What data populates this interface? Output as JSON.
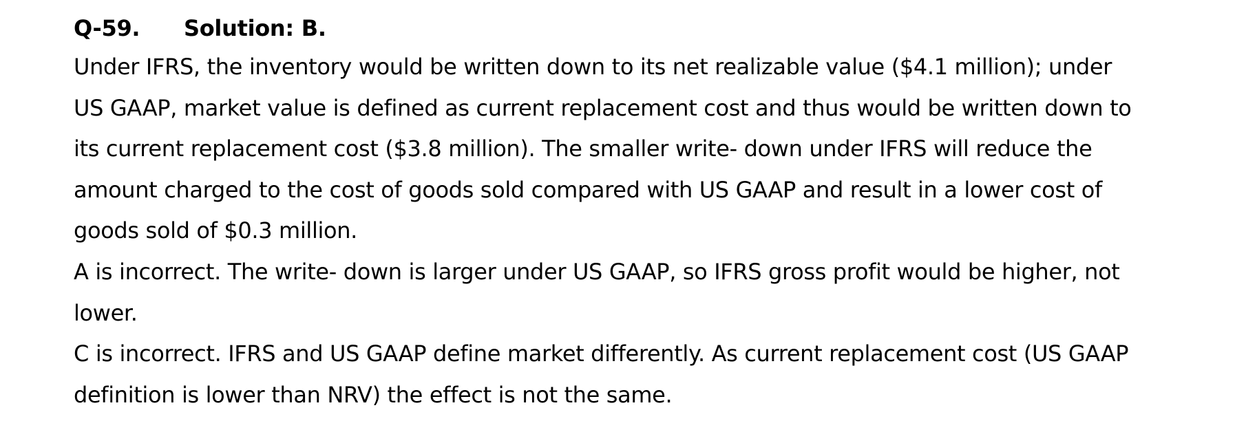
{
  "question": {
    "number": "Q-59.",
    "solution": "Solution: B."
  },
  "explanation": {
    "lines": [
      "Under IFRS, the inventory would be written down to its net realizable value ($4.1 million); under",
      "US GAAP, market value is defined as current replacement cost and thus would be written down to",
      "its current replacement cost ($3.8 million). The smaller write- down under IFRS will reduce the",
      "amount charged to the cost of goods sold compared with US GAAP and result in a lower cost of",
      "goods sold of $0.3 million."
    ]
  },
  "option_a": {
    "lines": [
      "A is incorrect. The write- down is larger under US GAAP, so IFRS gross profit would be higher, not",
      "lower."
    ]
  },
  "option_c": {
    "lines": [
      "C is incorrect. IFRS and US GAAP define market differently. As current replacement cost (US GAAP",
      "definition is lower than NRV) the effect is not the same."
    ]
  }
}
